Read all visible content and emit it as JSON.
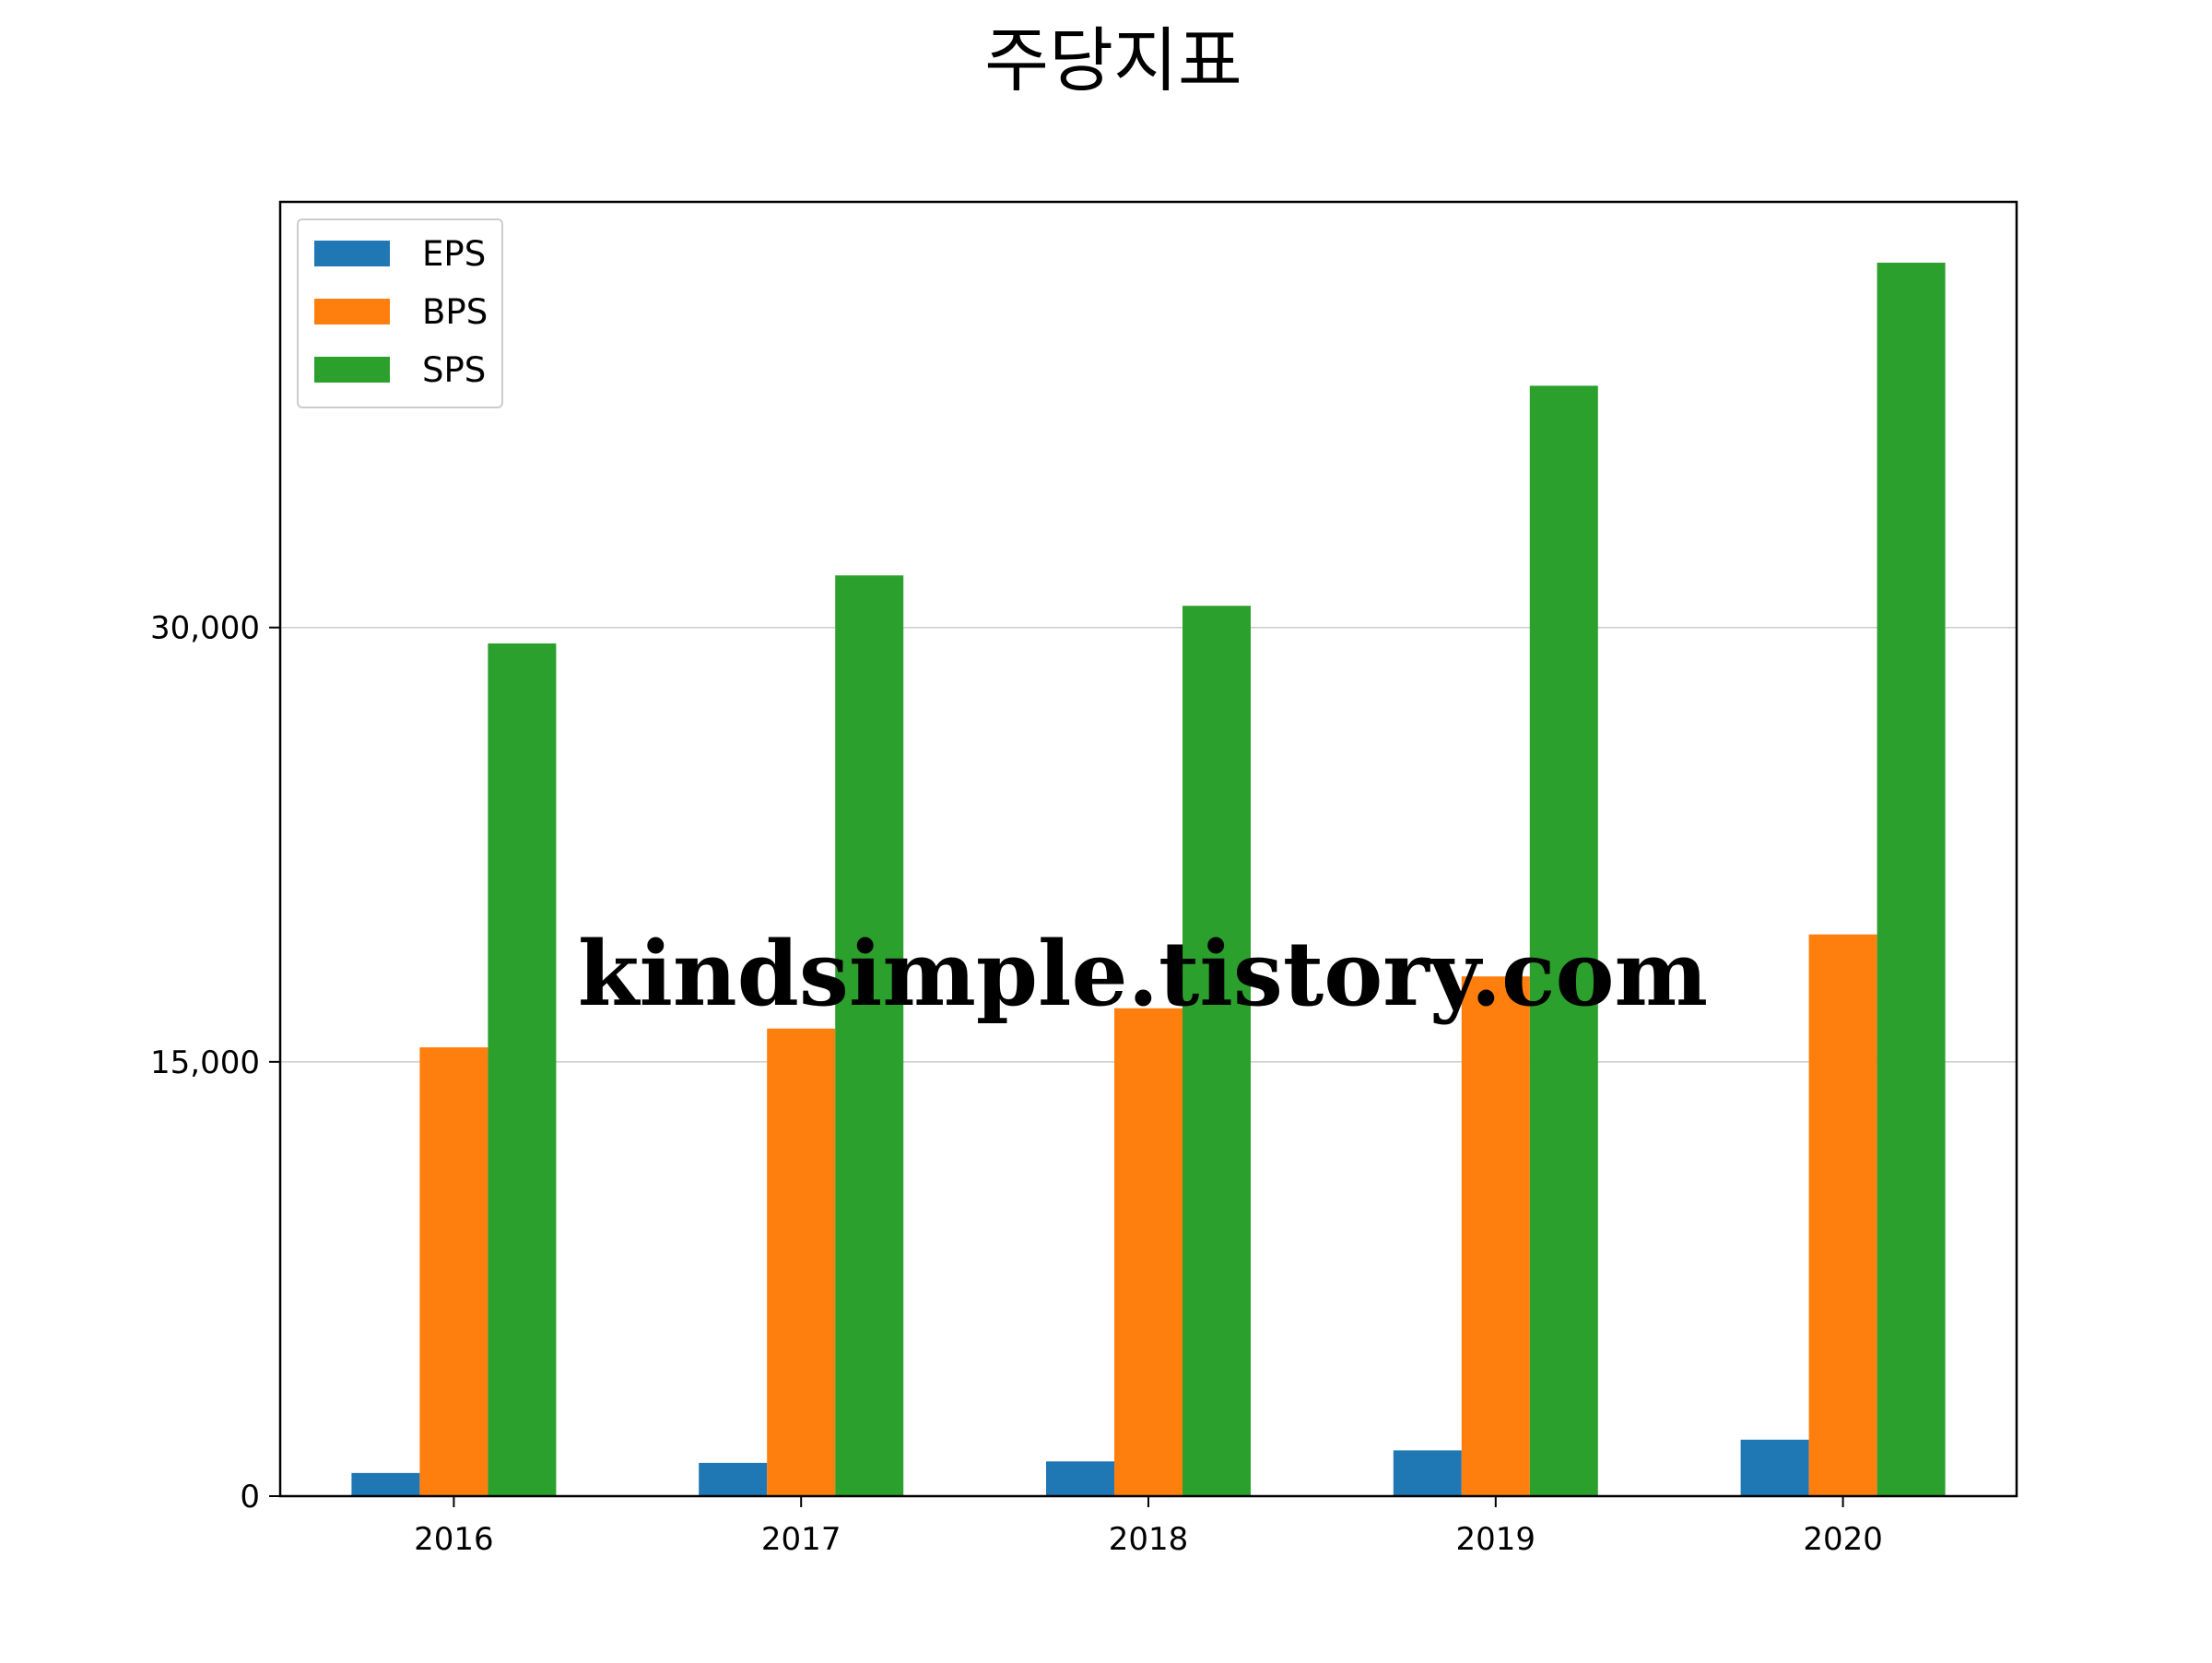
{
  "chart_data": {
    "type": "bar",
    "title": "주당지표",
    "xlabel": "",
    "ylabel": "",
    "categories": [
      "2016",
      "2017",
      "2018",
      "2019",
      "2020"
    ],
    "series": [
      {
        "name": "EPS",
        "color": "#1f77b4",
        "values": [
          800,
          1150,
          1200,
          1580,
          1950
        ]
      },
      {
        "name": "BPS",
        "color": "#ff7f0e",
        "values": [
          15500,
          16150,
          16850,
          17950,
          19400
        ]
      },
      {
        "name": "SPS",
        "color": "#2ca02c",
        "values": [
          29450,
          31800,
          30750,
          38350,
          42600
        ]
      }
    ],
    "ylim": [
      0,
      44700
    ],
    "yticks": [
      0,
      15000,
      30000
    ],
    "ytick_labels": [
      "0",
      "15,000",
      "30,000"
    ],
    "grid": "horizontal",
    "legend_position": "top-left"
  },
  "watermark": {
    "text": "kindsimple.tistory.com",
    "color": "#e8a6ea"
  }
}
